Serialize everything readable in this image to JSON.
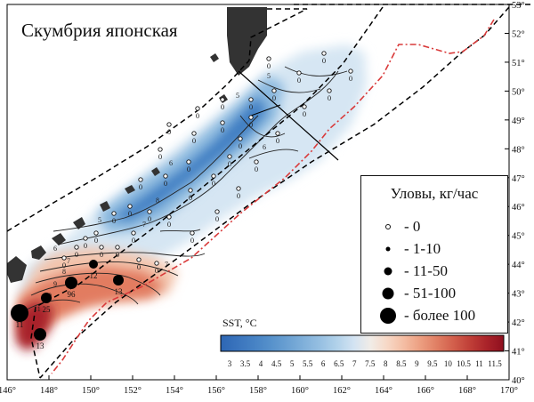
{
  "title": "Скумбрия японская",
  "legend": {
    "title": "Уловы, кг/час",
    "items": [
      {
        "label": "- 0",
        "kind": "open"
      },
      {
        "label": "- 1-10",
        "kind": "dot-xs"
      },
      {
        "label": "- 11-50",
        "kind": "dot-s"
      },
      {
        "label": "- 51-100",
        "kind": "dot-m"
      },
      {
        "label": "- более 100",
        "kind": "dot-l"
      }
    ]
  },
  "colorbar": {
    "label": "SST, °C",
    "ticks": [
      "3",
      "3.5",
      "4",
      "4.5",
      "5",
      "5.5",
      "6",
      "6.5",
      "7",
      "7.5",
      "8",
      "8.5",
      "9",
      "9.5",
      "10",
      "10.5",
      "11",
      "11.5"
    ],
    "colors": [
      "#2d66b4",
      "#3a74bd",
      "#4682c4",
      "#5691cb",
      "#6aa0d2",
      "#80b0da",
      "#97c0e2",
      "#b2d2ea",
      "#d3e3f2",
      "#f1ece7",
      "#f7d8c6",
      "#f4bda3",
      "#ec9e80",
      "#e07e63",
      "#d25e4b",
      "#bf3e37",
      "#a92229",
      "#8e0f1e"
    ]
  },
  "axes": {
    "x_ticks": [
      "146°",
      "148°",
      "150°",
      "152°",
      "154°",
      "156°",
      "158°",
      "160°",
      "162°",
      "164°",
      "166°",
      "168°",
      "170°"
    ],
    "y_ticks": [
      "40°",
      "41°",
      "42°",
      "43°",
      "44°",
      "45°",
      "46°",
      "47°",
      "48°",
      "49°",
      "50°",
      "51°",
      "52°",
      "53°"
    ]
  },
  "contour_labels": [
    "5",
    "6",
    "7",
    "8",
    "9",
    "10",
    "11",
    "5",
    "6",
    "7",
    "8",
    "7",
    "6",
    "5"
  ],
  "catch_labels": [
    "11",
    "25",
    "96",
    "12",
    "13",
    "13"
  ],
  "zero_stations": [
    "0",
    "0",
    "0",
    "0",
    "0",
    "0",
    "0",
    "0",
    "0",
    "0",
    "0",
    "0",
    "0",
    "0",
    "0",
    "0",
    "0",
    "0",
    "0",
    "0",
    "0",
    "0",
    "0",
    "0",
    "0",
    "0",
    "0",
    "0",
    "0",
    "0",
    "0",
    "0",
    "0",
    "0",
    "0",
    "0",
    "0",
    "0",
    "0",
    "0"
  ],
  "colors": {
    "land": "#333333",
    "frame": "#000000",
    "zone_line": "#d93a3a"
  }
}
